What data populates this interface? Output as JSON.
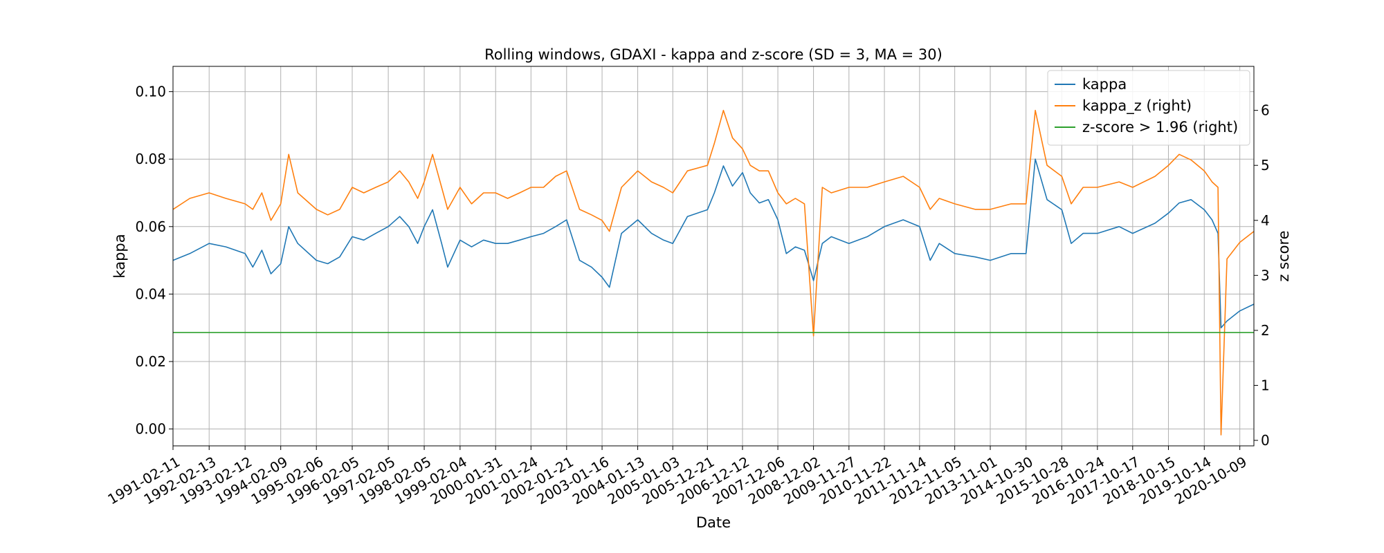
{
  "chart_data": {
    "type": "line",
    "title": "Rolling windows, GDAXI - kappa and z-score (SD = 3, MA = 30)",
    "xlabel": "Date",
    "ylabel": "kappa",
    "ylabel_right": "z score",
    "xlim": [
      "1991-02-11",
      "2021-03-01"
    ],
    "ylim": [
      -0.005,
      0.1075
    ],
    "ylim_right": [
      -0.1,
      6.8
    ],
    "yticks": [
      "0.00",
      "0.02",
      "0.04",
      "0.06",
      "0.08",
      "0.10"
    ],
    "yticks_right": [
      "0",
      "1",
      "2",
      "3",
      "4",
      "5",
      "6"
    ],
    "xticks": [
      "1991-02-11",
      "1992-02-13",
      "1993-02-12",
      "1994-02-09",
      "1995-02-06",
      "1996-02-05",
      "1997-02-05",
      "1998-02-05",
      "1999-02-04",
      "2000-01-31",
      "2001-01-24",
      "2002-01-21",
      "2003-01-16",
      "2004-01-13",
      "2005-01-03",
      "2005-12-21",
      "2006-12-12",
      "2007-12-06",
      "2008-12-02",
      "2009-11-27",
      "2010-11-22",
      "2011-11-14",
      "2012-11-05",
      "2013-11-01",
      "2014-10-30",
      "2015-10-28",
      "2016-10-24",
      "2017-10-17",
      "2018-10-15",
      "2019-10-14",
      "2020-10-09"
    ],
    "grid": true,
    "legend_position": "top-right",
    "series": [
      {
        "name": "kappa",
        "axis": "left",
        "color": "#1f77b4",
        "x": [
          "1991-02-11",
          "1991-08-01",
          "1992-02-13",
          "1992-08-01",
          "1993-02-12",
          "1993-05-01",
          "1993-08-01",
          "1993-11-01",
          "1994-02-09",
          "1994-05-01",
          "1994-08-01",
          "1995-02-06",
          "1995-06-01",
          "1995-10-01",
          "1996-02-05",
          "1996-06-01",
          "1996-10-01",
          "1997-02-05",
          "1997-06-01",
          "1997-09-01",
          "1997-12-01",
          "1998-02-05",
          "1998-05-01",
          "1998-08-01",
          "1998-10-01",
          "1999-02-04",
          "1999-06-01",
          "1999-10-01",
          "2000-01-31",
          "2000-06-01",
          "2000-10-01",
          "2001-01-24",
          "2001-06-01",
          "2001-10-01",
          "2002-01-21",
          "2002-06-01",
          "2002-10-01",
          "2003-01-16",
          "2003-04-01",
          "2003-08-01",
          "2004-01-13",
          "2004-06-01",
          "2004-10-01",
          "2005-01-03",
          "2005-06-01",
          "2005-12-21",
          "2006-03-01",
          "2006-06-01",
          "2006-09-01",
          "2006-12-12",
          "2007-03-01",
          "2007-06-01",
          "2007-09-01",
          "2007-12-06",
          "2008-03-01",
          "2008-06-01",
          "2008-09-01",
          "2008-12-02",
          "2009-03-01",
          "2009-06-01",
          "2009-11-27",
          "2010-06-01",
          "2010-11-22",
          "2011-06-01",
          "2011-11-14",
          "2012-03-01",
          "2012-06-01",
          "2012-11-05",
          "2013-06-01",
          "2013-11-01",
          "2014-06-01",
          "2014-10-30",
          "2015-02-01",
          "2015-06-01",
          "2015-10-28",
          "2016-02-01",
          "2016-06-01",
          "2016-10-24",
          "2017-06-01",
          "2017-10-17",
          "2018-06-01",
          "2018-10-15",
          "2019-02-01",
          "2019-06-01",
          "2019-10-14",
          "2020-01-01",
          "2020-03-01",
          "2020-04-01",
          "2020-06-01",
          "2020-10-09",
          "2021-03-01"
        ],
        "values": [
          0.05,
          0.052,
          0.055,
          0.054,
          0.052,
          0.048,
          0.053,
          0.046,
          0.049,
          0.06,
          0.055,
          0.05,
          0.049,
          0.051,
          0.057,
          0.056,
          0.058,
          0.06,
          0.063,
          0.06,
          0.055,
          0.06,
          0.065,
          0.055,
          0.048,
          0.056,
          0.054,
          0.056,
          0.055,
          0.055,
          0.056,
          0.057,
          0.058,
          0.06,
          0.062,
          0.05,
          0.048,
          0.045,
          0.042,
          0.058,
          0.062,
          0.058,
          0.056,
          0.055,
          0.063,
          0.065,
          0.07,
          0.078,
          0.072,
          0.076,
          0.07,
          0.067,
          0.068,
          0.062,
          0.052,
          0.054,
          0.053,
          0.044,
          0.055,
          0.057,
          0.055,
          0.057,
          0.06,
          0.062,
          0.06,
          0.05,
          0.055,
          0.052,
          0.051,
          0.05,
          0.052,
          0.052,
          0.08,
          0.068,
          0.065,
          0.055,
          0.058,
          0.058,
          0.06,
          0.058,
          0.061,
          0.064,
          0.067,
          0.068,
          0.065,
          0.062,
          0.058,
          0.03,
          0.032,
          0.035,
          0.037
        ]
      },
      {
        "name": "kappa_z (right)",
        "axis": "right",
        "color": "#ff7f0e",
        "x": [
          "1991-02-11",
          "1991-08-01",
          "1992-02-13",
          "1992-08-01",
          "1993-02-12",
          "1993-05-01",
          "1993-08-01",
          "1993-11-01",
          "1994-02-09",
          "1994-05-01",
          "1994-08-01",
          "1995-02-06",
          "1995-06-01",
          "1995-10-01",
          "1996-02-05",
          "1996-06-01",
          "1996-10-01",
          "1997-02-05",
          "1997-06-01",
          "1997-09-01",
          "1997-12-01",
          "1998-02-05",
          "1998-05-01",
          "1998-08-01",
          "1998-10-01",
          "1999-02-04",
          "1999-06-01",
          "1999-10-01",
          "2000-01-31",
          "2000-06-01",
          "2000-10-01",
          "2001-01-24",
          "2001-06-01",
          "2001-10-01",
          "2002-01-21",
          "2002-06-01",
          "2002-10-01",
          "2003-01-16",
          "2003-04-01",
          "2003-08-01",
          "2004-01-13",
          "2004-06-01",
          "2004-10-01",
          "2005-01-03",
          "2005-06-01",
          "2005-12-21",
          "2006-03-01",
          "2006-06-01",
          "2006-09-01",
          "2006-12-12",
          "2007-03-01",
          "2007-06-01",
          "2007-09-01",
          "2007-12-06",
          "2008-03-01",
          "2008-06-01",
          "2008-09-01",
          "2008-12-02",
          "2009-03-01",
          "2009-06-01",
          "2009-11-27",
          "2010-06-01",
          "2010-11-22",
          "2011-06-01",
          "2011-11-14",
          "2012-03-01",
          "2012-06-01",
          "2012-11-05",
          "2013-06-01",
          "2013-11-01",
          "2014-06-01",
          "2014-10-30",
          "2015-02-01",
          "2015-06-01",
          "2015-10-28",
          "2016-02-01",
          "2016-06-01",
          "2016-10-24",
          "2017-06-01",
          "2017-10-17",
          "2018-06-01",
          "2018-10-15",
          "2019-02-01",
          "2019-06-01",
          "2019-10-14",
          "2020-01-01",
          "2020-03-01",
          "2020-04-01",
          "2020-06-01",
          "2020-10-09",
          "2021-03-01"
        ],
        "values": [
          4.2,
          4.4,
          4.5,
          4.4,
          4.3,
          4.2,
          4.5,
          4.0,
          4.3,
          5.2,
          4.5,
          4.2,
          4.1,
          4.2,
          4.6,
          4.5,
          4.6,
          4.7,
          4.9,
          4.7,
          4.4,
          4.7,
          5.2,
          4.6,
          4.2,
          4.6,
          4.3,
          4.5,
          4.5,
          4.4,
          4.5,
          4.6,
          4.6,
          4.8,
          4.9,
          4.2,
          4.1,
          4.0,
          3.8,
          4.6,
          4.9,
          4.7,
          4.6,
          4.5,
          4.9,
          5.0,
          5.4,
          6.0,
          5.5,
          5.3,
          5.0,
          4.9,
          4.9,
          4.5,
          4.3,
          4.4,
          4.3,
          1.9,
          4.6,
          4.5,
          4.6,
          4.6,
          4.7,
          4.8,
          4.6,
          4.2,
          4.4,
          4.3,
          4.2,
          4.2,
          4.3,
          4.3,
          6.0,
          5.0,
          4.8,
          4.3,
          4.6,
          4.6,
          4.7,
          4.6,
          4.8,
          5.0,
          5.2,
          5.1,
          4.9,
          4.7,
          4.6,
          0.1,
          3.3,
          3.6,
          3.8
        ]
      },
      {
        "name": "z-score > 1.96 (right)",
        "axis": "right",
        "color": "#2ca02c",
        "x": [
          "1991-02-11",
          "2021-03-01"
        ],
        "values": [
          1.96,
          1.96
        ]
      }
    ]
  }
}
